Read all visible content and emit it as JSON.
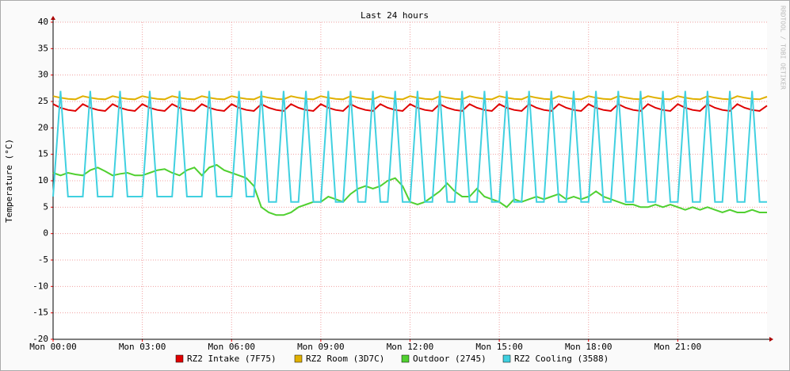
{
  "chart_data": {
    "type": "line",
    "title": "Last 24 hours",
    "y_label": "Temperature (°C)",
    "watermark": "RRDTOOL / TOBI OETIKER",
    "xlim": [
      0,
      24
    ],
    "ylim": [
      -20,
      40
    ],
    "xticks": [
      {
        "value": 0,
        "label": "Mon 00:00"
      },
      {
        "value": 3,
        "label": "Mon 03:00"
      },
      {
        "value": 6,
        "label": "Mon 06:00"
      },
      {
        "value": 9,
        "label": "Mon 09:00"
      },
      {
        "value": 12,
        "label": "Mon 12:00"
      },
      {
        "value": 15,
        "label": "Mon 15:00"
      },
      {
        "value": 18,
        "label": "Mon 18:00"
      },
      {
        "value": 21,
        "label": "Mon 21:00"
      }
    ],
    "yticks": [
      -20,
      -15,
      -10,
      -5,
      0,
      5,
      10,
      15,
      20,
      25,
      30,
      35,
      40
    ],
    "grid": true,
    "legend": "bottom",
    "x": [
      0,
      0.25,
      0.5,
      0.75,
      1,
      1.25,
      1.5,
      1.75,
      2,
      2.25,
      2.5,
      2.75,
      3,
      3.25,
      3.5,
      3.75,
      4,
      4.25,
      4.5,
      4.75,
      5,
      5.25,
      5.5,
      5.75,
      6,
      6.25,
      6.5,
      6.75,
      7,
      7.25,
      7.5,
      7.75,
      8,
      8.25,
      8.5,
      8.75,
      9,
      9.25,
      9.5,
      9.75,
      10,
      10.25,
      10.5,
      10.75,
      11,
      11.25,
      11.5,
      11.75,
      12,
      12.25,
      12.5,
      12.75,
      13,
      13.25,
      13.5,
      13.75,
      14,
      14.25,
      14.5,
      14.75,
      15,
      15.25,
      15.5,
      15.75,
      16,
      16.25,
      16.5,
      16.75,
      17,
      17.25,
      17.5,
      17.75,
      18,
      18.25,
      18.5,
      18.75,
      19,
      19.25,
      19.5,
      19.75,
      20,
      20.25,
      20.5,
      20.75,
      21,
      21.25,
      21.5,
      21.75,
      22,
      22.25,
      22.5,
      22.75,
      23,
      23.25,
      23.5,
      23.75,
      24
    ],
    "series": [
      {
        "name": "RZ2 Intake (7F75)",
        "color": "#e00000",
        "values": [
          24.5,
          23.8,
          23.4,
          23.2,
          24.5,
          23.8,
          23.4,
          23.2,
          24.5,
          23.8,
          23.4,
          23.2,
          24.5,
          23.8,
          23.4,
          23.2,
          24.5,
          23.8,
          23.4,
          23.2,
          24.5,
          23.8,
          23.4,
          23.2,
          24.5,
          23.8,
          23.4,
          23.2,
          24.5,
          23.8,
          23.4,
          23.2,
          24.5,
          23.8,
          23.4,
          23.2,
          24.5,
          23.8,
          23.4,
          23.2,
          24.5,
          23.8,
          23.4,
          23.2,
          24.5,
          23.8,
          23.4,
          23.2,
          24.5,
          23.8,
          23.4,
          23.2,
          24.5,
          23.8,
          23.4,
          23.2,
          24.5,
          23.8,
          23.4,
          23.2,
          24.5,
          23.8,
          23.4,
          23.2,
          24.5,
          23.8,
          23.4,
          23.2,
          24.5,
          23.8,
          23.4,
          23.2,
          24.5,
          23.8,
          23.4,
          23.2,
          24.5,
          23.8,
          23.4,
          23.2,
          24.5,
          23.8,
          23.4,
          23.2,
          24.5,
          23.8,
          23.4,
          23.2,
          24.5,
          23.8,
          23.4,
          23.2,
          24.5,
          23.8,
          23.4,
          23.2,
          24.2
        ]
      },
      {
        "name": "RZ2 Room (3D7C)",
        "color": "#e0b000",
        "values": [
          26,
          25.7,
          25.5,
          25.4,
          26,
          25.7,
          25.5,
          25.4,
          26,
          25.7,
          25.5,
          25.4,
          26,
          25.7,
          25.5,
          25.4,
          26,
          25.7,
          25.5,
          25.4,
          26,
          25.7,
          25.5,
          25.4,
          26,
          25.7,
          25.5,
          25.4,
          26,
          25.7,
          25.5,
          25.4,
          26,
          25.7,
          25.5,
          25.4,
          26,
          25.7,
          25.5,
          25.4,
          26,
          25.7,
          25.5,
          25.4,
          26,
          25.7,
          25.5,
          25.4,
          26,
          25.7,
          25.5,
          25.4,
          26,
          25.7,
          25.5,
          25.4,
          26,
          25.7,
          25.5,
          25.4,
          26,
          25.7,
          25.5,
          25.4,
          26,
          25.7,
          25.5,
          25.4,
          26,
          25.7,
          25.5,
          25.4,
          26,
          25.7,
          25.5,
          25.4,
          26,
          25.7,
          25.5,
          25.4,
          26,
          25.7,
          25.5,
          25.4,
          26,
          25.7,
          25.5,
          25.4,
          26,
          25.7,
          25.5,
          25.4,
          26,
          25.7,
          25.5,
          25.4,
          25.9
        ]
      },
      {
        "name": "Outdoor (2745)",
        "color": "#50d030",
        "values": [
          11.5,
          11,
          11.5,
          11.2,
          11,
          12,
          12.5,
          11.8,
          11,
          11.3,
          11.5,
          11,
          11,
          11.5,
          12,
          12.2,
          11.5,
          11,
          12,
          12.5,
          11,
          12.5,
          13,
          12,
          11.5,
          11,
          10.5,
          9,
          5,
          4,
          3.5,
          3.5,
          4,
          5,
          5.5,
          6,
          6,
          7,
          6.5,
          6,
          7.5,
          8.5,
          9,
          8.5,
          9,
          10,
          10.5,
          9,
          6,
          5.5,
          6,
          7,
          8,
          9.5,
          8,
          7,
          7,
          8.5,
          7,
          6.5,
          6,
          5,
          6.5,
          6,
          6.5,
          7,
          6.5,
          7,
          7.5,
          6.5,
          7,
          6.5,
          7,
          8,
          7,
          6.5,
          6,
          5.5,
          5.5,
          5,
          5,
          5.5,
          5,
          5.5,
          5,
          4.5,
          5,
          4.5,
          5,
          4.5,
          4,
          4.5,
          4,
          4,
          4.5,
          4,
          4
        ]
      },
      {
        "name": "RZ2 Cooling (3588)",
        "color": "#40d0e0",
        "values": [
          7,
          27,
          7,
          7,
          7,
          27,
          7,
          7,
          7,
          27,
          7,
          7,
          7,
          27,
          7,
          7,
          7,
          27,
          7,
          7,
          7,
          27,
          7,
          7,
          7,
          27,
          7,
          7,
          27,
          6,
          6,
          27,
          6,
          6,
          27,
          6,
          6,
          27,
          6,
          6,
          27,
          6,
          6,
          27,
          6,
          6,
          27,
          6,
          6,
          27,
          6,
          6,
          27,
          6,
          6,
          27,
          6,
          6,
          27,
          6,
          6,
          27,
          6,
          6,
          27,
          6,
          6,
          27,
          6,
          6,
          27,
          6,
          6,
          27,
          6,
          6,
          27,
          6,
          6,
          27,
          6,
          6,
          27,
          6,
          6,
          27,
          6,
          6,
          27,
          6,
          6,
          27,
          6,
          6,
          27,
          6,
          6
        ]
      }
    ]
  }
}
